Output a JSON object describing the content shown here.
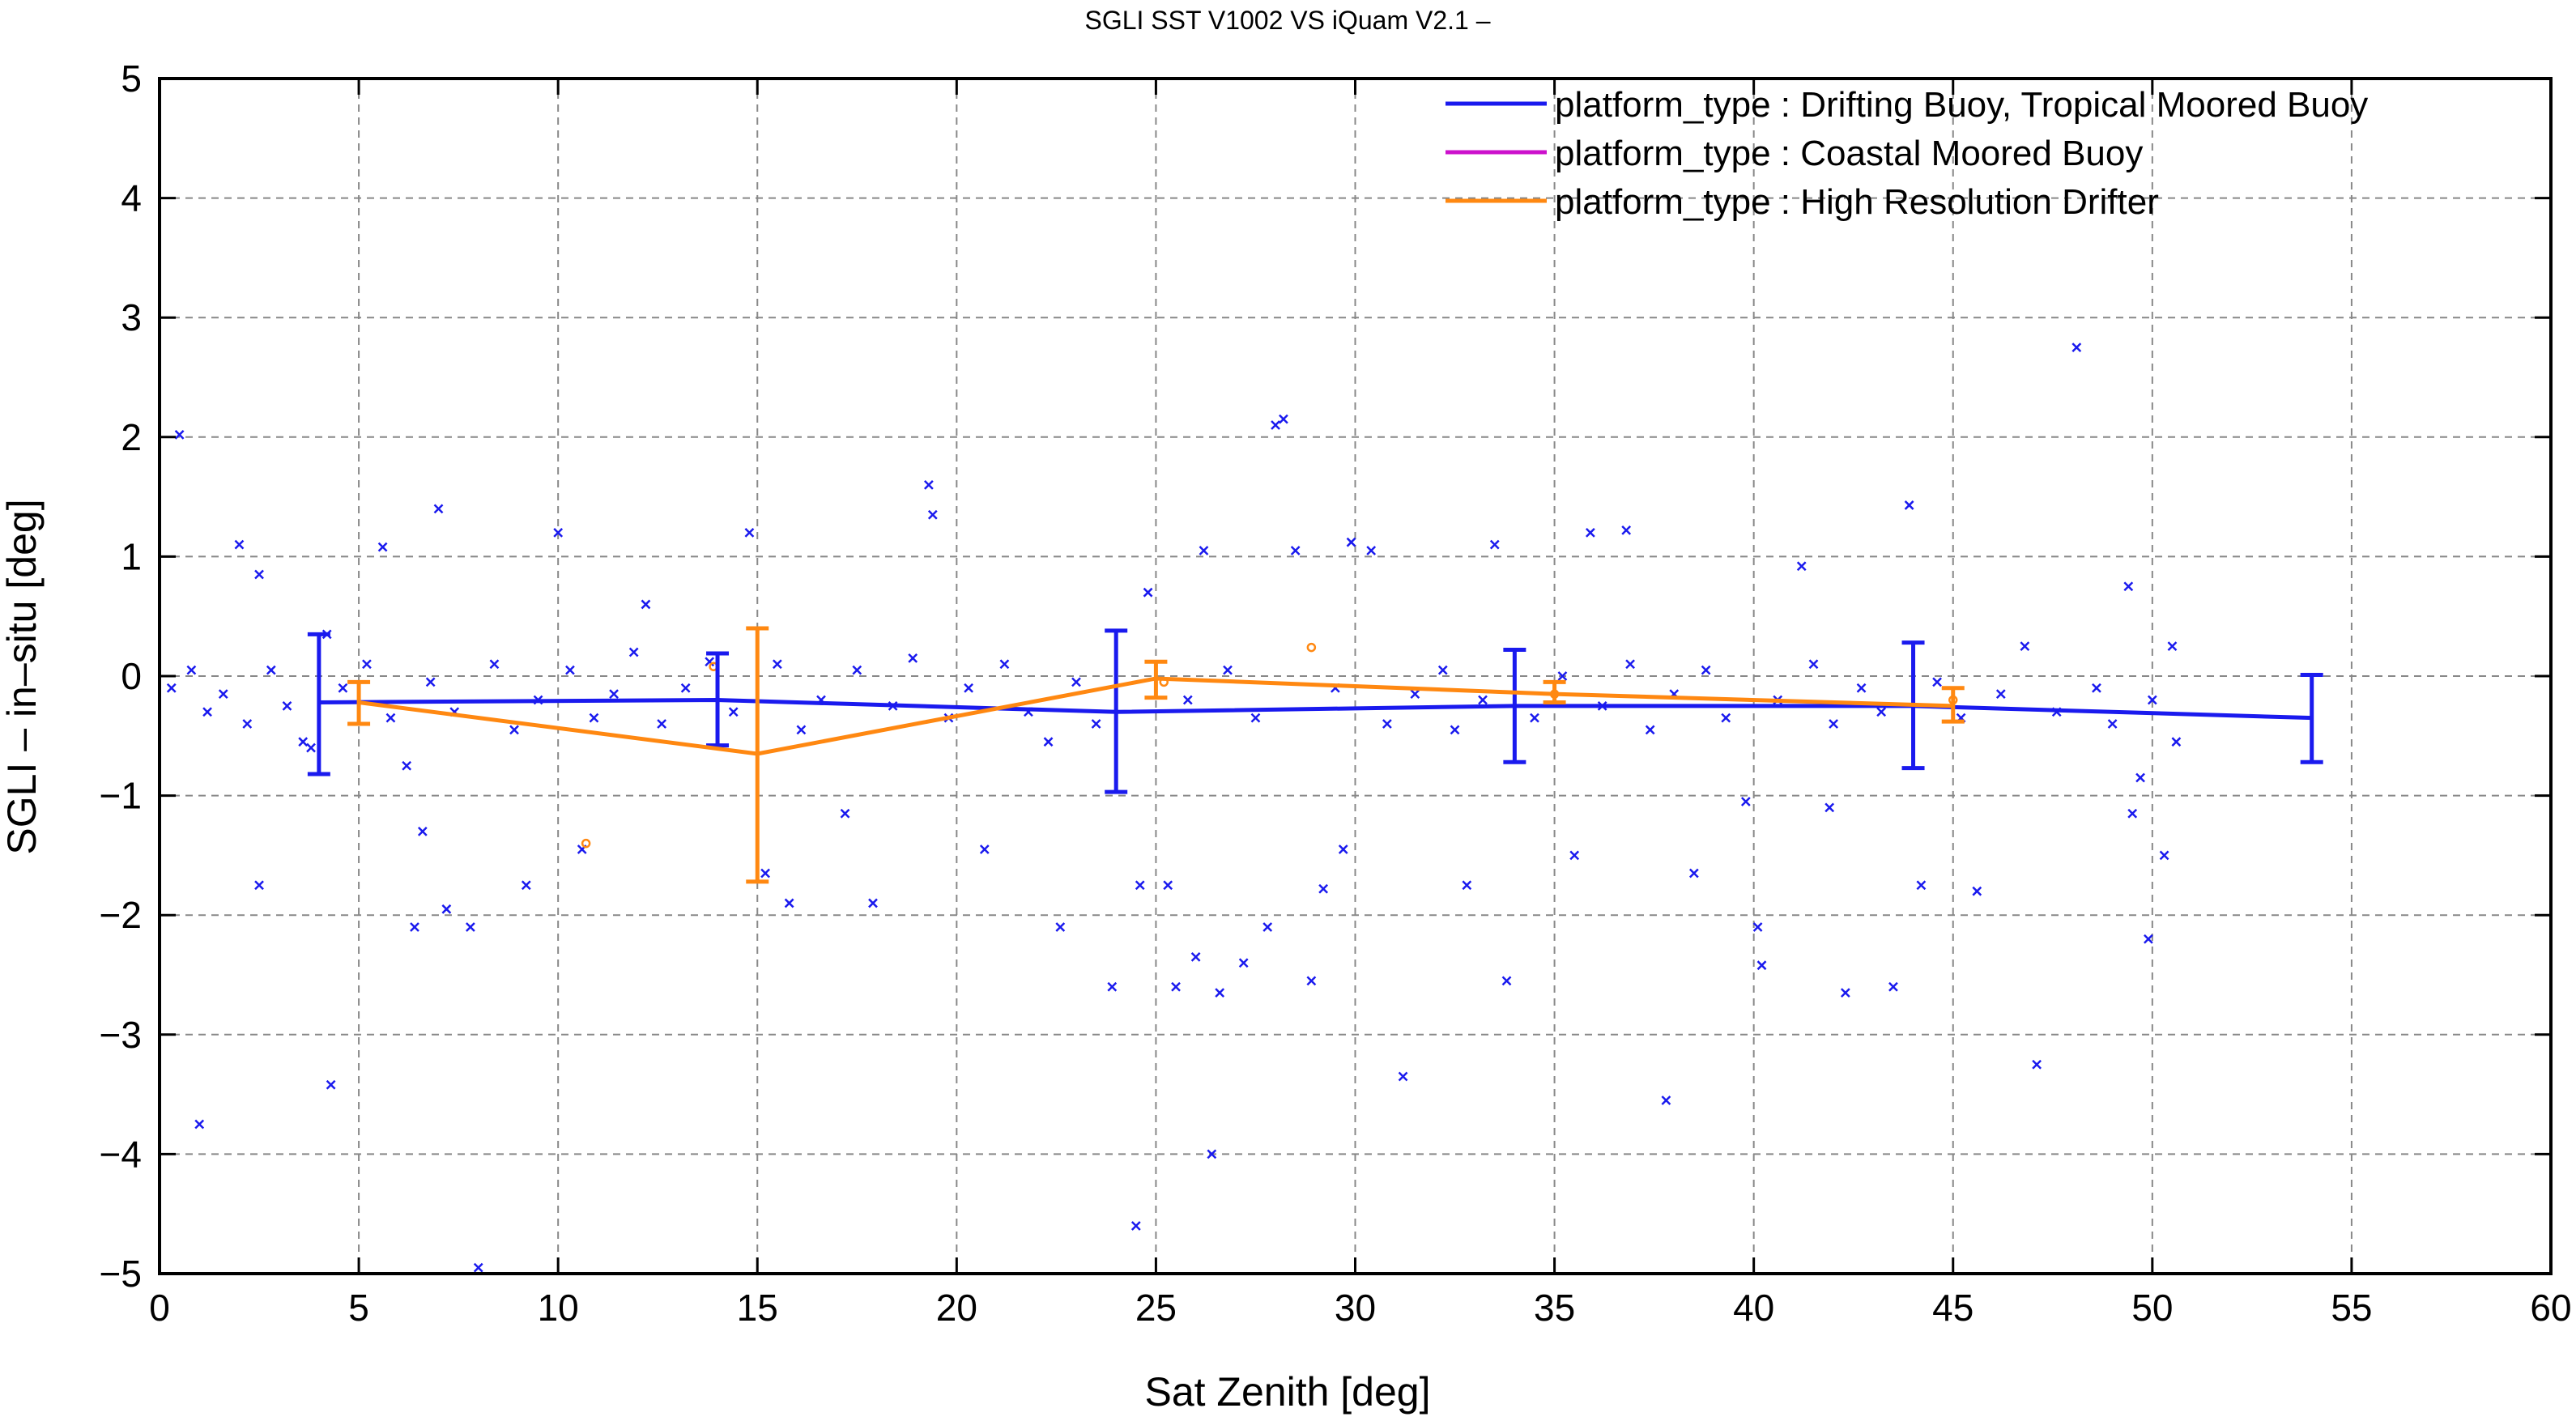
{
  "chart_data": {
    "type": "scatter",
    "title": "SGLI SST V1002 VS iQuam V2.1  –",
    "xlabel": "Sat Zenith [deg]",
    "ylabel": "SGLI – in–situ [deg]",
    "xlim": [
      0,
      60
    ],
    "ylim": [
      -5,
      5
    ],
    "xticks": [
      0,
      5,
      10,
      15,
      20,
      25,
      30,
      35,
      40,
      45,
      50,
      55,
      60
    ],
    "xtick_labels": [
      "0",
      "5",
      "10",
      "15",
      "20",
      "25",
      "30",
      "35",
      "40",
      "45",
      "50",
      "55",
      "60"
    ],
    "yticks": [
      -5,
      -4,
      -3,
      -2,
      -1,
      0,
      1,
      2,
      3,
      4,
      5
    ],
    "ytick_labels": [
      "−5",
      "−4",
      "−3",
      "−2",
      "−1",
      "0",
      "1",
      "2",
      "3",
      "4",
      "5"
    ],
    "grid": true,
    "legend_position": "top-right",
    "series": [
      {
        "name": "platform_type : Drifting Buoy, Tropical Moored Buoy",
        "color": "#1a1aee",
        "marker": "x",
        "mean_x": [
          4,
          14,
          24,
          34,
          44,
          54
        ],
        "mean_y": [
          -0.22,
          -0.2,
          -0.3,
          -0.25,
          -0.25,
          -0.35
        ],
        "err_low": [
          -0.82,
          -0.58,
          -0.97,
          -0.72,
          -0.77,
          -0.72
        ],
        "err_high": [
          0.35,
          0.19,
          0.38,
          0.22,
          0.28,
          0.01
        ],
        "points": [
          [
            0.5,
            2.02
          ],
          [
            1.0,
            -3.75
          ],
          [
            2.0,
            1.1
          ],
          [
            2.5,
            0.85
          ],
          [
            2.5,
            -1.75
          ],
          [
            3.8,
            -0.6
          ],
          [
            4.3,
            -3.42
          ],
          [
            4.2,
            0.35
          ],
          [
            5.6,
            1.08
          ],
          [
            6.2,
            -0.75
          ],
          [
            6.4,
            -2.1
          ],
          [
            6.6,
            -1.3
          ],
          [
            7.0,
            1.4
          ],
          [
            7.2,
            -1.95
          ],
          [
            7.8,
            -2.1
          ],
          [
            8.0,
            -4.95
          ],
          [
            9.2,
            -1.75
          ],
          [
            10.0,
            1.2
          ],
          [
            10.6,
            -1.45
          ],
          [
            12.2,
            0.6
          ],
          [
            13.8,
            0.12
          ],
          [
            14.8,
            1.2
          ],
          [
            15.2,
            -1.65
          ],
          [
            15.8,
            -1.9
          ],
          [
            17.2,
            -1.15
          ],
          [
            17.9,
            -1.9
          ],
          [
            19.3,
            1.6
          ],
          [
            19.4,
            1.35
          ],
          [
            20.7,
            -1.45
          ],
          [
            22.6,
            -2.1
          ],
          [
            23.9,
            -2.6
          ],
          [
            24.5,
            -4.6
          ],
          [
            24.6,
            -1.75
          ],
          [
            24.8,
            0.7
          ],
          [
            25.3,
            -1.75
          ],
          [
            25.5,
            -2.6
          ],
          [
            26.0,
            -2.35
          ],
          [
            26.2,
            1.05
          ],
          [
            26.4,
            -4.0
          ],
          [
            26.6,
            -2.65
          ],
          [
            27.2,
            -2.4
          ],
          [
            27.8,
            -2.1
          ],
          [
            28.0,
            2.1
          ],
          [
            28.2,
            2.15
          ],
          [
            28.5,
            1.05
          ],
          [
            28.9,
            -2.55
          ],
          [
            29.2,
            -1.78
          ],
          [
            29.7,
            -1.45
          ],
          [
            29.9,
            1.12
          ],
          [
            30.4,
            1.05
          ],
          [
            31.2,
            -3.35
          ],
          [
            32.8,
            -1.75
          ],
          [
            33.5,
            1.1
          ],
          [
            33.8,
            -2.55
          ],
          [
            35.5,
            -1.5
          ],
          [
            35.9,
            1.2
          ],
          [
            36.8,
            1.22
          ],
          [
            37.8,
            -3.55
          ],
          [
            38.5,
            -1.65
          ],
          [
            39.8,
            -1.05
          ],
          [
            40.1,
            -2.1
          ],
          [
            40.2,
            -2.42
          ],
          [
            41.2,
            0.92
          ],
          [
            41.9,
            -1.1
          ],
          [
            42.3,
            -2.65
          ],
          [
            43.5,
            -2.6
          ],
          [
            43.9,
            1.43
          ],
          [
            44.2,
            -1.75
          ],
          [
            45.6,
            -1.8
          ],
          [
            47.1,
            -3.25
          ],
          [
            48.1,
            2.75
          ],
          [
            49.4,
            0.75
          ],
          [
            49.7,
            -0.85
          ],
          [
            49.5,
            -1.15
          ],
          [
            49.9,
            -2.2
          ],
          [
            50.3,
            -1.5
          ],
          [
            50.5,
            0.25
          ],
          [
            0.3,
            -0.1
          ],
          [
            0.8,
            0.05
          ],
          [
            1.2,
            -0.3
          ],
          [
            1.6,
            -0.15
          ],
          [
            2.2,
            -0.4
          ],
          [
            2.8,
            0.05
          ],
          [
            3.2,
            -0.25
          ],
          [
            3.6,
            -0.55
          ],
          [
            4.6,
            -0.1
          ],
          [
            5.2,
            0.1
          ],
          [
            5.8,
            -0.35
          ],
          [
            6.8,
            -0.05
          ],
          [
            7.4,
            -0.3
          ],
          [
            8.4,
            0.1
          ],
          [
            8.9,
            -0.45
          ],
          [
            9.5,
            -0.2
          ],
          [
            10.3,
            0.05
          ],
          [
            10.9,
            -0.35
          ],
          [
            11.4,
            -0.15
          ],
          [
            11.9,
            0.2
          ],
          [
            12.6,
            -0.4
          ],
          [
            13.2,
            -0.1
          ],
          [
            14.4,
            -0.3
          ],
          [
            15.5,
            0.1
          ],
          [
            16.1,
            -0.45
          ],
          [
            16.6,
            -0.2
          ],
          [
            17.5,
            0.05
          ],
          [
            18.4,
            -0.25
          ],
          [
            18.9,
            0.15
          ],
          [
            19.8,
            -0.35
          ],
          [
            20.3,
            -0.1
          ],
          [
            21.2,
            0.1
          ],
          [
            21.8,
            -0.3
          ],
          [
            22.3,
            -0.55
          ],
          [
            23.0,
            -0.05
          ],
          [
            23.5,
            -0.4
          ],
          [
            25.8,
            -0.2
          ],
          [
            26.8,
            0.05
          ],
          [
            27.5,
            -0.35
          ],
          [
            29.5,
            -0.1
          ],
          [
            30.8,
            -0.4
          ],
          [
            31.5,
            -0.15
          ],
          [
            32.2,
            0.05
          ],
          [
            32.5,
            -0.45
          ],
          [
            33.2,
            -0.2
          ],
          [
            34.5,
            -0.35
          ],
          [
            35.2,
            0.0
          ],
          [
            36.2,
            -0.25
          ],
          [
            36.9,
            0.1
          ],
          [
            37.4,
            -0.45
          ],
          [
            38.0,
            -0.15
          ],
          [
            38.8,
            0.05
          ],
          [
            39.3,
            -0.35
          ],
          [
            40.6,
            -0.2
          ],
          [
            41.5,
            0.1
          ],
          [
            42.0,
            -0.4
          ],
          [
            42.7,
            -0.1
          ],
          [
            43.2,
            -0.3
          ],
          [
            44.6,
            -0.05
          ],
          [
            45.2,
            -0.35
          ],
          [
            46.2,
            -0.15
          ],
          [
            46.8,
            0.25
          ],
          [
            47.6,
            -0.3
          ],
          [
            48.6,
            -0.1
          ],
          [
            49.0,
            -0.4
          ],
          [
            50.0,
            -0.2
          ],
          [
            50.6,
            -0.55
          ]
        ]
      },
      {
        "name": "platform_type : Coastal Moored Buoy",
        "color": "#cc11cc",
        "marker": "x",
        "mean_x": [],
        "mean_y": [],
        "points": []
      },
      {
        "name": "platform_type : High Resolution Drifter",
        "color": "#ff8811",
        "marker": "o",
        "mean_x": [
          5,
          15,
          25,
          35,
          45
        ],
        "mean_y": [
          -0.22,
          -0.65,
          -0.02,
          -0.15,
          -0.25
        ],
        "err_low": [
          -0.4,
          -1.72,
          -0.18,
          -0.22,
          -0.38
        ],
        "err_high": [
          -0.05,
          0.4,
          0.12,
          -0.05,
          -0.1
        ],
        "points": [
          [
            10.7,
            -1.4
          ],
          [
            13.9,
            0.08
          ],
          [
            28.9,
            0.24
          ],
          [
            25.2,
            -0.05
          ],
          [
            35.0,
            -0.15
          ],
          [
            45.0,
            -0.2
          ]
        ]
      }
    ]
  }
}
